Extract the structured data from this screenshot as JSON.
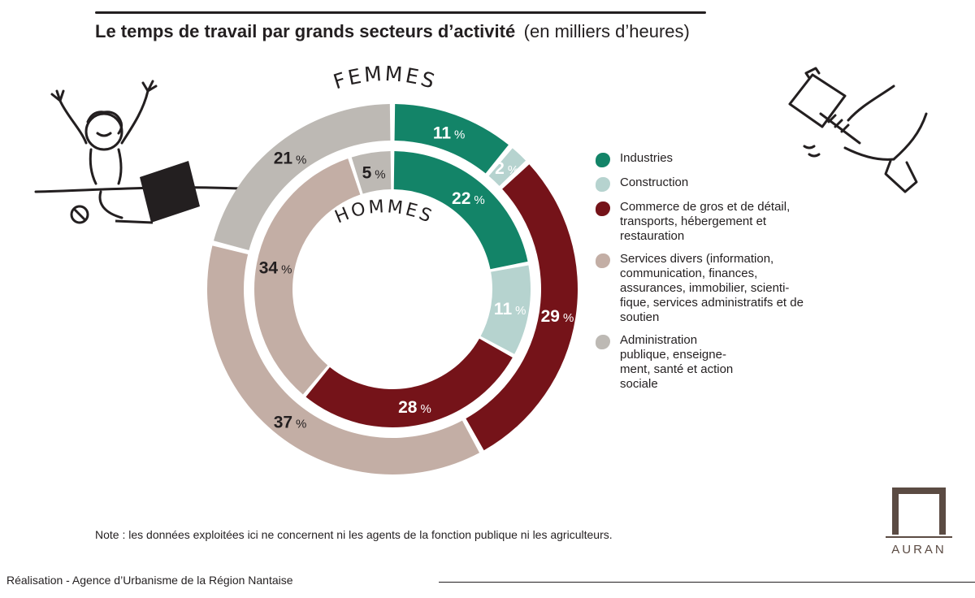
{
  "header": {
    "title": "Le temps de travail par grands secteurs d’activité",
    "subtitle": "(en milliers d’heures)"
  },
  "chart_data": {
    "type": "pie",
    "title": "Le temps de travail par grands secteurs d’activité",
    "subtitle": "(en milliers d’heures)",
    "categories": [
      "Industries",
      "Construction",
      "Commerce de gros et de détail, transports, hébergement et restauration",
      "Services divers (information, communication, finances, assurances, immobilier, scientifique, services administratifs et de soutien",
      "Administration publique, enseignement, santé et action sociale"
    ],
    "series": [
      {
        "name": "FEMMES",
        "ring": "outer",
        "values": [
          11,
          2,
          29,
          37,
          21
        ]
      },
      {
        "name": "HOMMES",
        "ring": "inner",
        "values": [
          22,
          11,
          28,
          34,
          5
        ]
      }
    ],
    "colors": [
      "#138468",
      "#b6d3cf",
      "#751319",
      "#c3aea5",
      "#bdb9b4"
    ],
    "unit": "%"
  },
  "legend": [
    {
      "lines": [
        "Industries"
      ],
      "color": "#138468"
    },
    {
      "lines": [
        "Construction"
      ],
      "color": "#b6d3cf"
    },
    {
      "lines": [
        "Commerce de gros et de détail,",
        "transports,  hébergement et",
        "restauration"
      ],
      "color": "#751319"
    },
    {
      "lines": [
        "Services divers (information,",
        "communication, finances,",
        "assurances, immobilier, scienti-",
        "fique, services administratifs et de",
        "soutien"
      ],
      "color": "#c3aea5"
    },
    {
      "lines": [
        "Administration",
        "publique, enseigne-",
        "ment, santé et action",
        "sociale"
      ],
      "color": "#bdb9b4"
    }
  ],
  "note": "Note : les données exploitées ici ne concernent ni les agents de la fonction publique ni les agriculteurs.",
  "credit": "Réalisation - Agence d’Urbanisme de la Région Nantaise",
  "logo": {
    "text": "AURAN",
    "color": "#5b4b43"
  },
  "illustrations": {
    "left": "person-at-laptop-icon",
    "right": "hand-with-hammer-icon"
  }
}
